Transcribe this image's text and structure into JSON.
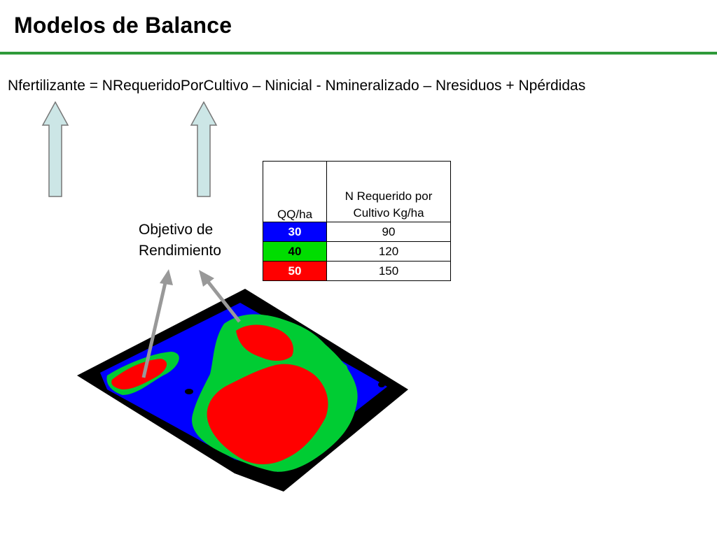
{
  "slide": {
    "title": "Modelos de Balance",
    "equation": "Nfertilizante = NRequeridoPorCultivo – Ninicial - Nmineralizado – Nresiduos + Npérdidas",
    "goal_label_line1": "Objetivo de",
    "goal_label_line2": "Rendimiento"
  },
  "table": {
    "headers": [
      "QQ/ha",
      "N Requerido por Cultivo Kg/ha"
    ],
    "rows": [
      {
        "qq": "30",
        "n": "90",
        "color": "#0000ff",
        "text_color": "#ffffff"
      },
      {
        "qq": "40",
        "n": "120",
        "color": "#00dd00",
        "text_color": "#000000"
      },
      {
        "qq": "50",
        "n": "150",
        "color": "#ff0000",
        "text_color": "#ffffff"
      }
    ]
  },
  "colors": {
    "accent_rule": "#2f9a3a",
    "up_arrow_fill": "#cce6e6",
    "pointer_arrow": "#999999",
    "map_blue": "#0000ff",
    "map_green": "#00cc33",
    "map_red": "#ff0000",
    "map_black": "#000000"
  },
  "icons": {
    "up_arrows": "up-arrow-icon",
    "pointer_arrows": "pointer-arrow-icon",
    "map_image": "yield-zone-map-image"
  }
}
